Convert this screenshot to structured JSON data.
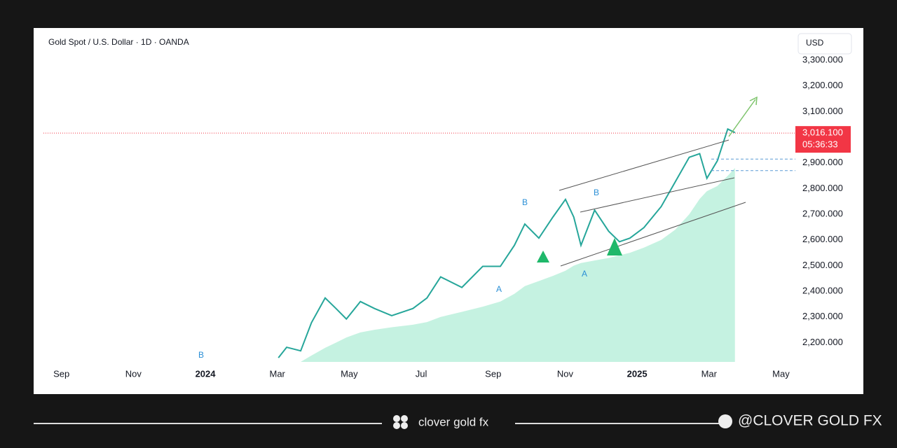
{
  "chart_data": {
    "type": "line",
    "title": "Gold Spot / U.S. Dollar · 1D · OANDA",
    "currency": "USD",
    "x": [
      6.03,
      6.26,
      6.65,
      6.95,
      7.33,
      7.63,
      7.92,
      8.31,
      8.7,
      9.18,
      9.77,
      10.16,
      10.54,
      11.13,
      11.71,
      12.2,
      12.59,
      12.88,
      13.27,
      13.66,
      14.01,
      14.24,
      14.44,
      14.82,
      15.21,
      15.51,
      15.8,
      16.19,
      16.67,
      17.06,
      17.45,
      17.74,
      17.94,
      18.23,
      18.52,
      18.72
    ],
    "series": [
      {
        "color": "#26a69a",
        "values": [
          2141,
          2182,
          2168,
          2278,
          2374,
          2333,
          2292,
          2360,
          2333,
          2305,
          2333,
          2374,
          2456,
          2415,
          2497,
          2497,
          2579,
          2662,
          2607,
          2689,
          2758,
          2689,
          2579,
          2716,
          2634,
          2593,
          2607,
          2648,
          2730,
          2826,
          2922,
          2936,
          2840,
          2908,
          3032,
          3018
        ]
      },
      {
        "color": "#b7efd9",
        "values": [
          2125,
          2125,
          2125,
          2150,
          2180,
          2200,
          2220,
          2240,
          2250,
          2260,
          2270,
          2280,
          2300,
          2320,
          2340,
          2360,
          2390,
          2420,
          2440,
          2460,
          2480,
          2500,
          2510,
          2520,
          2530,
          2540,
          2550,
          2570,
          2600,
          2640,
          2700,
          2760,
          2790,
          2810,
          2850,
          2880
        ]
      }
    ],
    "xlim": [
      -0.5,
      20.4
    ],
    "xticks": [
      {
        "value": 0,
        "label": "Sep"
      },
      {
        "value": 2,
        "label": "Nov"
      },
      {
        "value": 4,
        "label": "2024"
      },
      {
        "value": 6,
        "label": "Mar"
      },
      {
        "value": 8,
        "label": "May"
      },
      {
        "value": 10,
        "label": "Jul"
      },
      {
        "value": 12,
        "label": "Sep"
      },
      {
        "value": 14,
        "label": "Nov"
      },
      {
        "value": 16,
        "label": "2025"
      },
      {
        "value": 18,
        "label": "Mar"
      },
      {
        "value": 20,
        "label": "May"
      }
    ],
    "ylim": [
      2125,
      3330
    ],
    "yticks": [
      {
        "value": 2200,
        "label": "2,200.000"
      },
      {
        "value": 2300,
        "label": "2,300.000"
      },
      {
        "value": 2400,
        "label": "2,400.000"
      },
      {
        "value": 2500,
        "label": "2,500.000"
      },
      {
        "value": 2600,
        "label": "2,600.000"
      },
      {
        "value": 2700,
        "label": "2,700.000"
      },
      {
        "value": 2800,
        "label": "2,800.000"
      },
      {
        "value": 2900,
        "label": "2,900.000"
      },
      {
        "value": 3000,
        "label": "3,000.000"
      },
      {
        "value": 3100,
        "label": "3,100.000"
      },
      {
        "value": 3200,
        "label": "3,200.000"
      },
      {
        "value": 3300,
        "label": "3,300.000"
      }
    ],
    "last_price": {
      "value": 3016.1,
      "label": "3,016.100"
    },
    "countdown": "05:36:33",
    "levels": [
      2915,
      2870
    ],
    "annotations": [
      "B",
      "B",
      "A",
      "B",
      "A"
    ]
  },
  "footer": {
    "brand": "clover gold fx",
    "handle": "@CLOVER GOLD FX"
  }
}
